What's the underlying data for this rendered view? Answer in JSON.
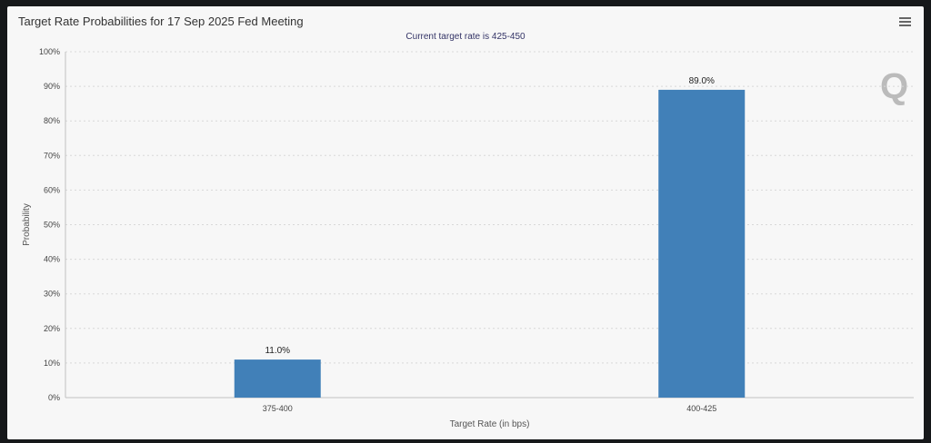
{
  "chart_data": {
    "type": "bar",
    "title": "Target Rate Probabilities for 17 Sep 2025 Fed Meeting",
    "subtitle": "Current target rate is 425-450",
    "categories": [
      "375-400",
      "400-425"
    ],
    "values": [
      11.0,
      89.0
    ],
    "data_labels": [
      "11.0%",
      "89.0%"
    ],
    "xlabel": "Target Rate (in bps)",
    "ylabel": "Probability",
    "ylim": [
      0,
      100
    ],
    "yticks": [
      "0%",
      "10%",
      "20%",
      "30%",
      "40%",
      "50%",
      "60%",
      "70%",
      "80%",
      "90%",
      "100%"
    ],
    "grid": true,
    "bar_color": "#4180b8"
  },
  "menu_icon": "hamburger-icon",
  "watermark": "Q"
}
